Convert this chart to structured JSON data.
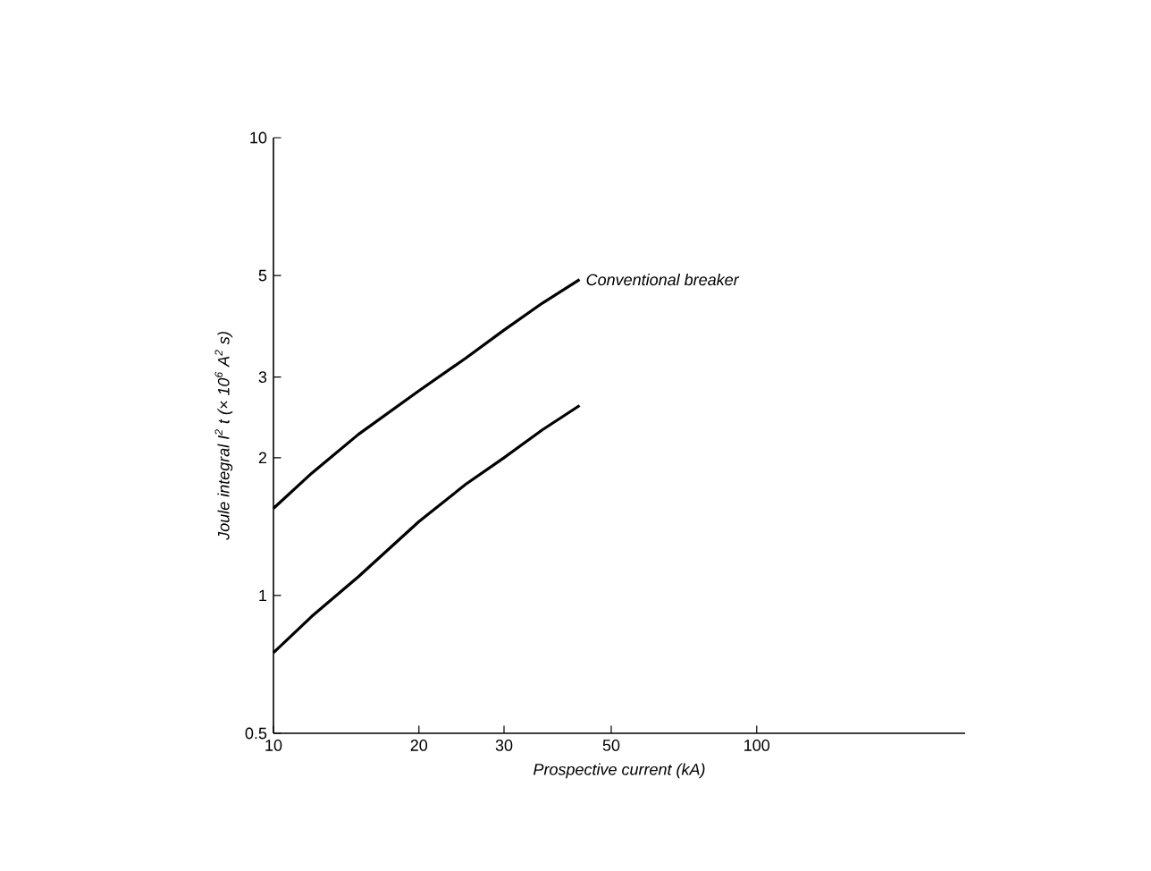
{
  "chart_data": {
    "type": "line",
    "xlabel": "Prospective current (kA)",
    "ylabel": "Joule integral I$^{2}$ t (× 10$^{6}$ A$^{2}$ s)",
    "log": "xy",
    "grid": false,
    "legend": false,
    "marker": "none",
    "line_style": "solid",
    "xlim": [
      10,
      270
    ],
    "xticks": [
      10,
      20,
      30,
      50,
      100
    ],
    "ylim": [
      0.5,
      10
    ],
    "yticks": [
      0.5,
      1,
      2,
      3,
      5,
      10
    ],
    "series": [
      {
        "name": "Conventional breaker",
        "color": "#000000",
        "x": [
          10,
          12,
          15,
          20,
          25,
          30,
          36,
          43
        ],
        "values": [
          1.55,
          1.85,
          2.25,
          2.8,
          3.3,
          3.8,
          4.35,
          4.9
        ]
      },
      {
        "color": "#000000",
        "x": [
          10,
          12,
          15,
          20,
          25,
          30,
          36,
          43
        ],
        "values": [
          0.75,
          0.9,
          1.1,
          1.45,
          1.75,
          2.0,
          2.3,
          2.6
        ]
      }
    ]
  }
}
